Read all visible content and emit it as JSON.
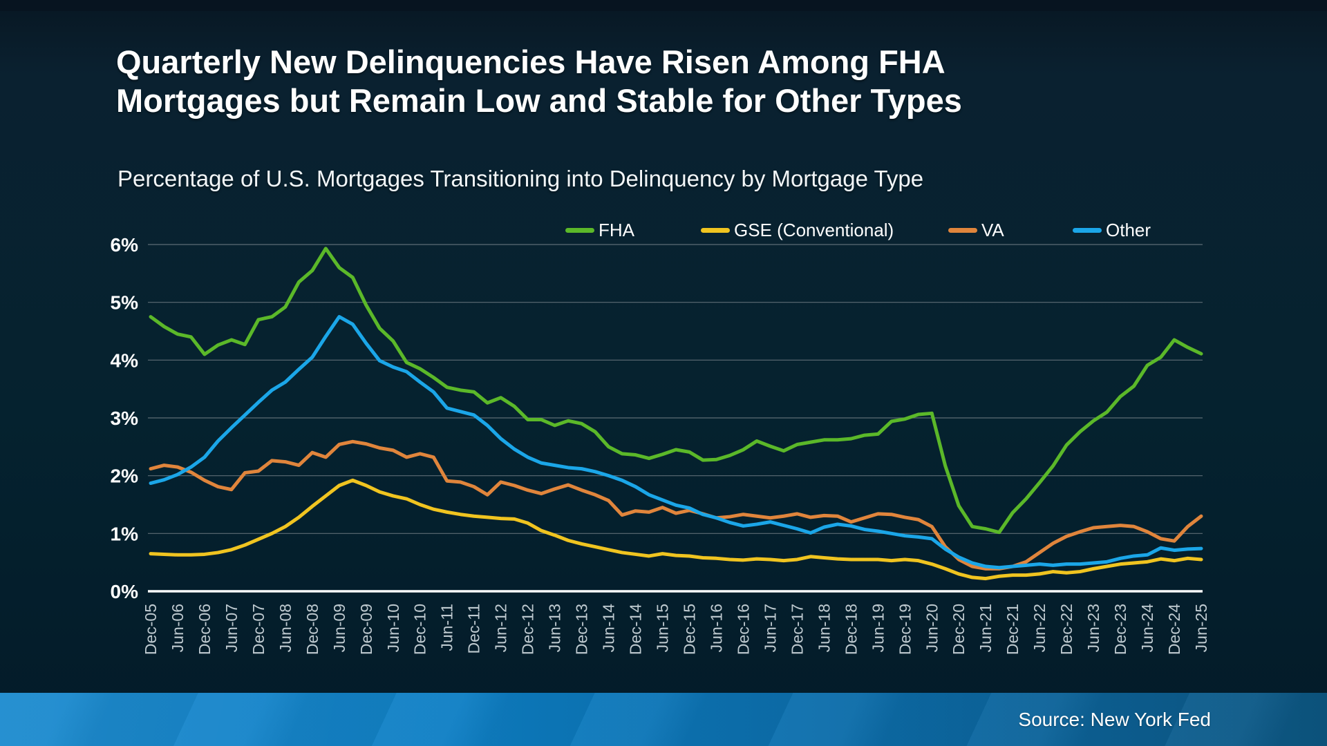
{
  "title": {
    "line1": "Quarterly New Delinquencies Have Risen Among FHA",
    "line2": "Mortgages but Remain Low and Stable for Other Types"
  },
  "subtitle": "Percentage of U.S. Mortgages Transitioning into Delinquency by Mortgage Type",
  "footer": {
    "source": "Source: New York Fed"
  },
  "colors": {
    "background": "#05222f",
    "top_strip": "#071420",
    "footer_bar": "#0d7ec4",
    "grid": "#5e6d75",
    "axis": "#ffffff",
    "y_tick_label": "#ffffff",
    "x_tick_label": "#bfcad0",
    "fha": "#5bb829",
    "gse": "#f0c420",
    "va": "#e0853c",
    "other": "#1ba6e8"
  },
  "chart_data": {
    "type": "line",
    "frequency": "quarterly",
    "ylim": [
      0,
      6
    ],
    "grid": "horizontal",
    "legend_position": "top",
    "y_ticks": [
      "0%",
      "1%",
      "2%",
      "3%",
      "4%",
      "5%",
      "6%"
    ],
    "x_tick_labels": [
      "Dec-05",
      "Jun-06",
      "Dec-06",
      "Jun-07",
      "Dec-07",
      "Jun-08",
      "Dec-08",
      "Jun-09",
      "Dec-09",
      "Jun-10",
      "Dec-10",
      "Jun-11",
      "Dec-11",
      "Jun-12",
      "Dec-12",
      "Jun-13",
      "Dec-13",
      "Jun-14",
      "Dec-14",
      "Jun-15",
      "Dec-15",
      "Jun-16",
      "Dec-16",
      "Jun-17",
      "Dec-17",
      "Jun-18",
      "Dec-18",
      "Jun-19",
      "Dec-19",
      "Jun-20",
      "Dec-20",
      "Jun-21",
      "Dec-21",
      "Jun-22",
      "Dec-22",
      "Jun-23",
      "Dec-23",
      "Jun-24",
      "Dec-24",
      "Jun-25"
    ],
    "points_per_x_label": 2,
    "series": [
      {
        "name": "FHA",
        "color": "#5bb829",
        "values": [
          4.75,
          4.58,
          4.45,
          4.4,
          4.1,
          4.26,
          4.35,
          4.27,
          4.7,
          4.75,
          4.92,
          5.35,
          5.55,
          5.93,
          5.6,
          5.43,
          4.95,
          4.55,
          4.33,
          3.96,
          3.85,
          3.7,
          3.53,
          3.48,
          3.45,
          3.26,
          3.35,
          3.2,
          2.97,
          2.97,
          2.87,
          2.95,
          2.9,
          2.76,
          2.5,
          2.38,
          2.36,
          2.3,
          2.37,
          2.45,
          2.41,
          2.27,
          2.28,
          2.35,
          2.45,
          2.6,
          2.51,
          2.43,
          2.54,
          2.58,
          2.62,
          2.62,
          2.64,
          2.7,
          2.72,
          2.94,
          2.98,
          3.06,
          3.08,
          2.17,
          1.48,
          1.12,
          1.08,
          1.02,
          1.36,
          1.6,
          1.88,
          2.17,
          2.53,
          2.76,
          2.95,
          3.1,
          3.37,
          3.55,
          3.91,
          4.05,
          4.35,
          4.22,
          4.11
        ]
      },
      {
        "name": "GSE (Conventional)",
        "color": "#f0c420",
        "values": [
          0.65,
          0.64,
          0.63,
          0.63,
          0.64,
          0.67,
          0.72,
          0.8,
          0.9,
          1.0,
          1.12,
          1.28,
          1.47,
          1.65,
          1.83,
          1.92,
          1.83,
          1.72,
          1.65,
          1.6,
          1.5,
          1.42,
          1.37,
          1.33,
          1.3,
          1.28,
          1.26,
          1.25,
          1.18,
          1.05,
          0.97,
          0.88,
          0.82,
          0.77,
          0.72,
          0.67,
          0.64,
          0.61,
          0.65,
          0.62,
          0.61,
          0.58,
          0.57,
          0.55,
          0.54,
          0.56,
          0.55,
          0.53,
          0.55,
          0.6,
          0.58,
          0.56,
          0.55,
          0.55,
          0.55,
          0.53,
          0.55,
          0.53,
          0.47,
          0.39,
          0.3,
          0.24,
          0.22,
          0.26,
          0.28,
          0.28,
          0.3,
          0.34,
          0.32,
          0.34,
          0.39,
          0.43,
          0.47,
          0.49,
          0.51,
          0.56,
          0.53,
          0.57,
          0.55
        ]
      },
      {
        "name": "VA",
        "color": "#e0853c",
        "values": [
          2.12,
          2.18,
          2.15,
          2.06,
          1.92,
          1.81,
          1.76,
          2.05,
          2.08,
          2.26,
          2.24,
          2.18,
          2.4,
          2.32,
          2.54,
          2.59,
          2.55,
          2.48,
          2.44,
          2.32,
          2.38,
          2.32,
          1.91,
          1.89,
          1.81,
          1.67,
          1.89,
          1.83,
          1.75,
          1.69,
          1.77,
          1.84,
          1.75,
          1.67,
          1.57,
          1.32,
          1.39,
          1.37,
          1.45,
          1.35,
          1.4,
          1.34,
          1.27,
          1.29,
          1.33,
          1.3,
          1.27,
          1.3,
          1.34,
          1.28,
          1.31,
          1.3,
          1.2,
          1.27,
          1.34,
          1.33,
          1.28,
          1.24,
          1.12,
          0.77,
          0.55,
          0.43,
          0.39,
          0.39,
          0.43,
          0.51,
          0.67,
          0.83,
          0.95,
          1.03,
          1.1,
          1.12,
          1.14,
          1.12,
          1.03,
          0.91,
          0.87,
          1.12,
          1.3
        ]
      },
      {
        "name": "Other",
        "color": "#1ba6e8",
        "values": [
          1.87,
          1.93,
          2.02,
          2.15,
          2.32,
          2.6,
          2.83,
          3.05,
          3.27,
          3.48,
          3.62,
          3.84,
          4.05,
          4.41,
          4.75,
          4.62,
          4.29,
          3.99,
          3.88,
          3.8,
          3.62,
          3.45,
          3.17,
          3.11,
          3.05,
          2.87,
          2.64,
          2.46,
          2.32,
          2.22,
          2.18,
          2.14,
          2.12,
          2.07,
          2.0,
          1.92,
          1.81,
          1.67,
          1.58,
          1.49,
          1.44,
          1.33,
          1.27,
          1.19,
          1.13,
          1.16,
          1.2,
          1.14,
          1.08,
          1.01,
          1.11,
          1.16,
          1.13,
          1.07,
          1.04,
          1.0,
          0.96,
          0.94,
          0.91,
          0.73,
          0.59,
          0.49,
          0.43,
          0.41,
          0.43,
          0.45,
          0.47,
          0.45,
          0.47,
          0.47,
          0.49,
          0.51,
          0.57,
          0.61,
          0.63,
          0.75,
          0.71,
          0.73,
          0.74
        ]
      }
    ]
  }
}
